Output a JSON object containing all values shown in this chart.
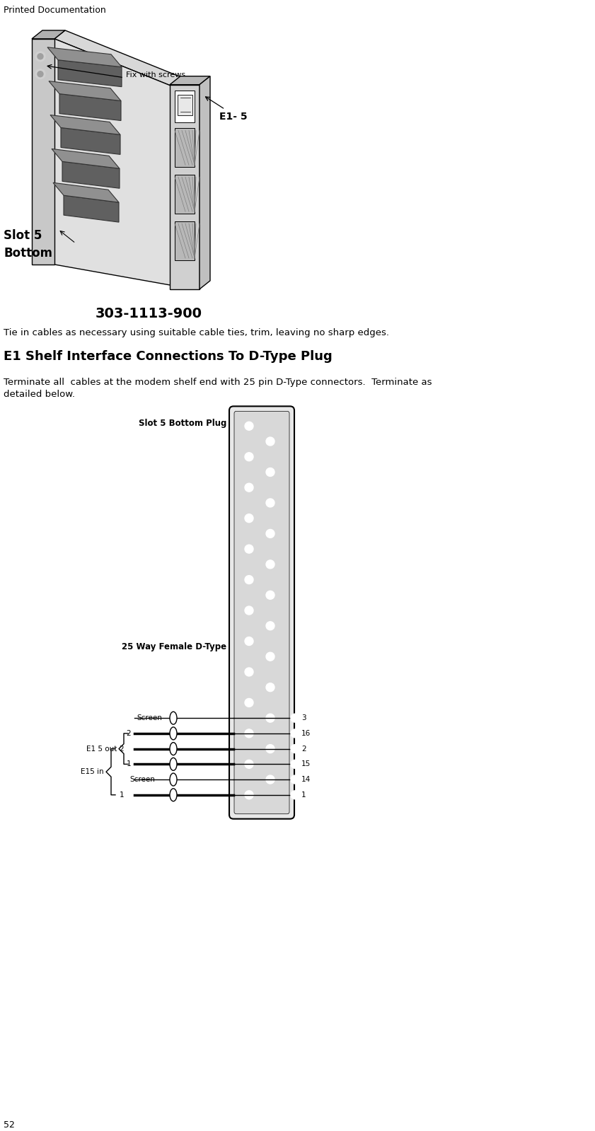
{
  "page_header": "Printed Documentation",
  "page_number": "52",
  "part_number": "303-1113-900",
  "instruction_text": "Tie in cables as necessary using suitable cable ties, trim, leaving no sharp edges.",
  "section_heading": "E1 Shelf Interface Connections To D-Type Plug",
  "body_text_1": "Terminate all  cables at the modem shelf end with 25 pin D-Type connectors.  Terminate as",
  "body_text_2": "detailed below.",
  "slot5_bottom_plug": "Slot 5 Bottom Plug",
  "way_female": "25 Way Female D-Type",
  "e15_out_label": "E1 5 out",
  "e15_in_label": "E15 in",
  "fix_screws_label": "Fix with screws",
  "e1_label": "E1- 5",
  "slot_label_1": "Slot 5",
  "slot_label_2": "Bottom",
  "pin_labels": [
    "16",
    "3",
    "15",
    "2",
    "14",
    "1"
  ],
  "wire_left_labels_out": [
    "2",
    "Screen",
    "1"
  ],
  "wire_left_labels_in": [
    "2",
    "Screen",
    "1"
  ],
  "bg_color": "#ffffff"
}
